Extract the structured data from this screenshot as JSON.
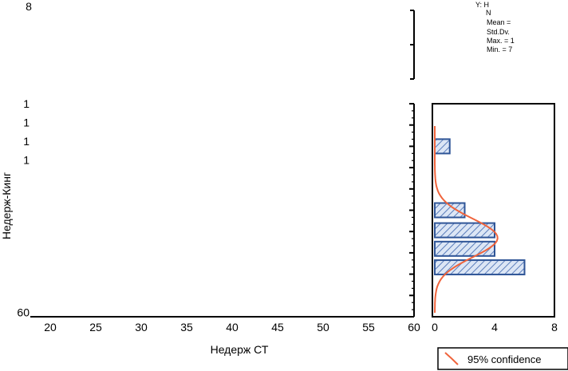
{
  "chart_data": [
    {
      "type": "scatter",
      "panel": "main",
      "xlabel": "Недерж СТ",
      "ylabel": "Недерж-Кинг",
      "xlim": [
        20,
        60
      ],
      "x_ticks": [
        "20",
        "25",
        "30",
        "35",
        "40",
        "45",
        "50",
        "55",
        "60"
      ],
      "y_tick_labels": [
        {
          "label": "1",
          "y_frac": 0.0
        },
        {
          "label": "1",
          "y_frac": 0.088
        },
        {
          "label": "1",
          "y_frac": 0.176
        },
        {
          "label": "1",
          "y_frac": 0.264
        },
        {
          "label": "60",
          "y_frac": 0.98
        }
      ],
      "series": []
    },
    {
      "type": "bar",
      "panel": "right-histogram",
      "orientation": "horizontal",
      "xlim": [
        0,
        8
      ],
      "x_ticks": [
        "0",
        "4",
        "8"
      ],
      "bins": [
        {
          "count": 1,
          "y_frac": 0.2
        },
        {
          "count": 2,
          "y_frac": 0.5
        },
        {
          "count": 4,
          "y_frac": 0.594
        },
        {
          "count": 4,
          "y_frac": 0.681
        },
        {
          "count": 6,
          "y_frac": 0.768
        }
      ],
      "normal_curve": {
        "peak_count": 4.2,
        "peak_y_frac": 0.63,
        "spread_frac": 0.09
      },
      "legend": {
        "label": "95% confidence",
        "position": "bottom-right"
      }
    }
  ],
  "top_panel": {
    "partial_tick_label": "8"
  },
  "stats_box": {
    "lines": [
      "Y: H",
      "N",
      "Mean =",
      "Std.Dv.",
      "Max. = 1",
      "Min. = 7"
    ]
  },
  "colors": {
    "bar_fill": "#dce6f5",
    "bar_stroke": "#2f5597",
    "hatch": "#5a7dbb",
    "curve": "#f0643c",
    "axis": "#000000"
  }
}
